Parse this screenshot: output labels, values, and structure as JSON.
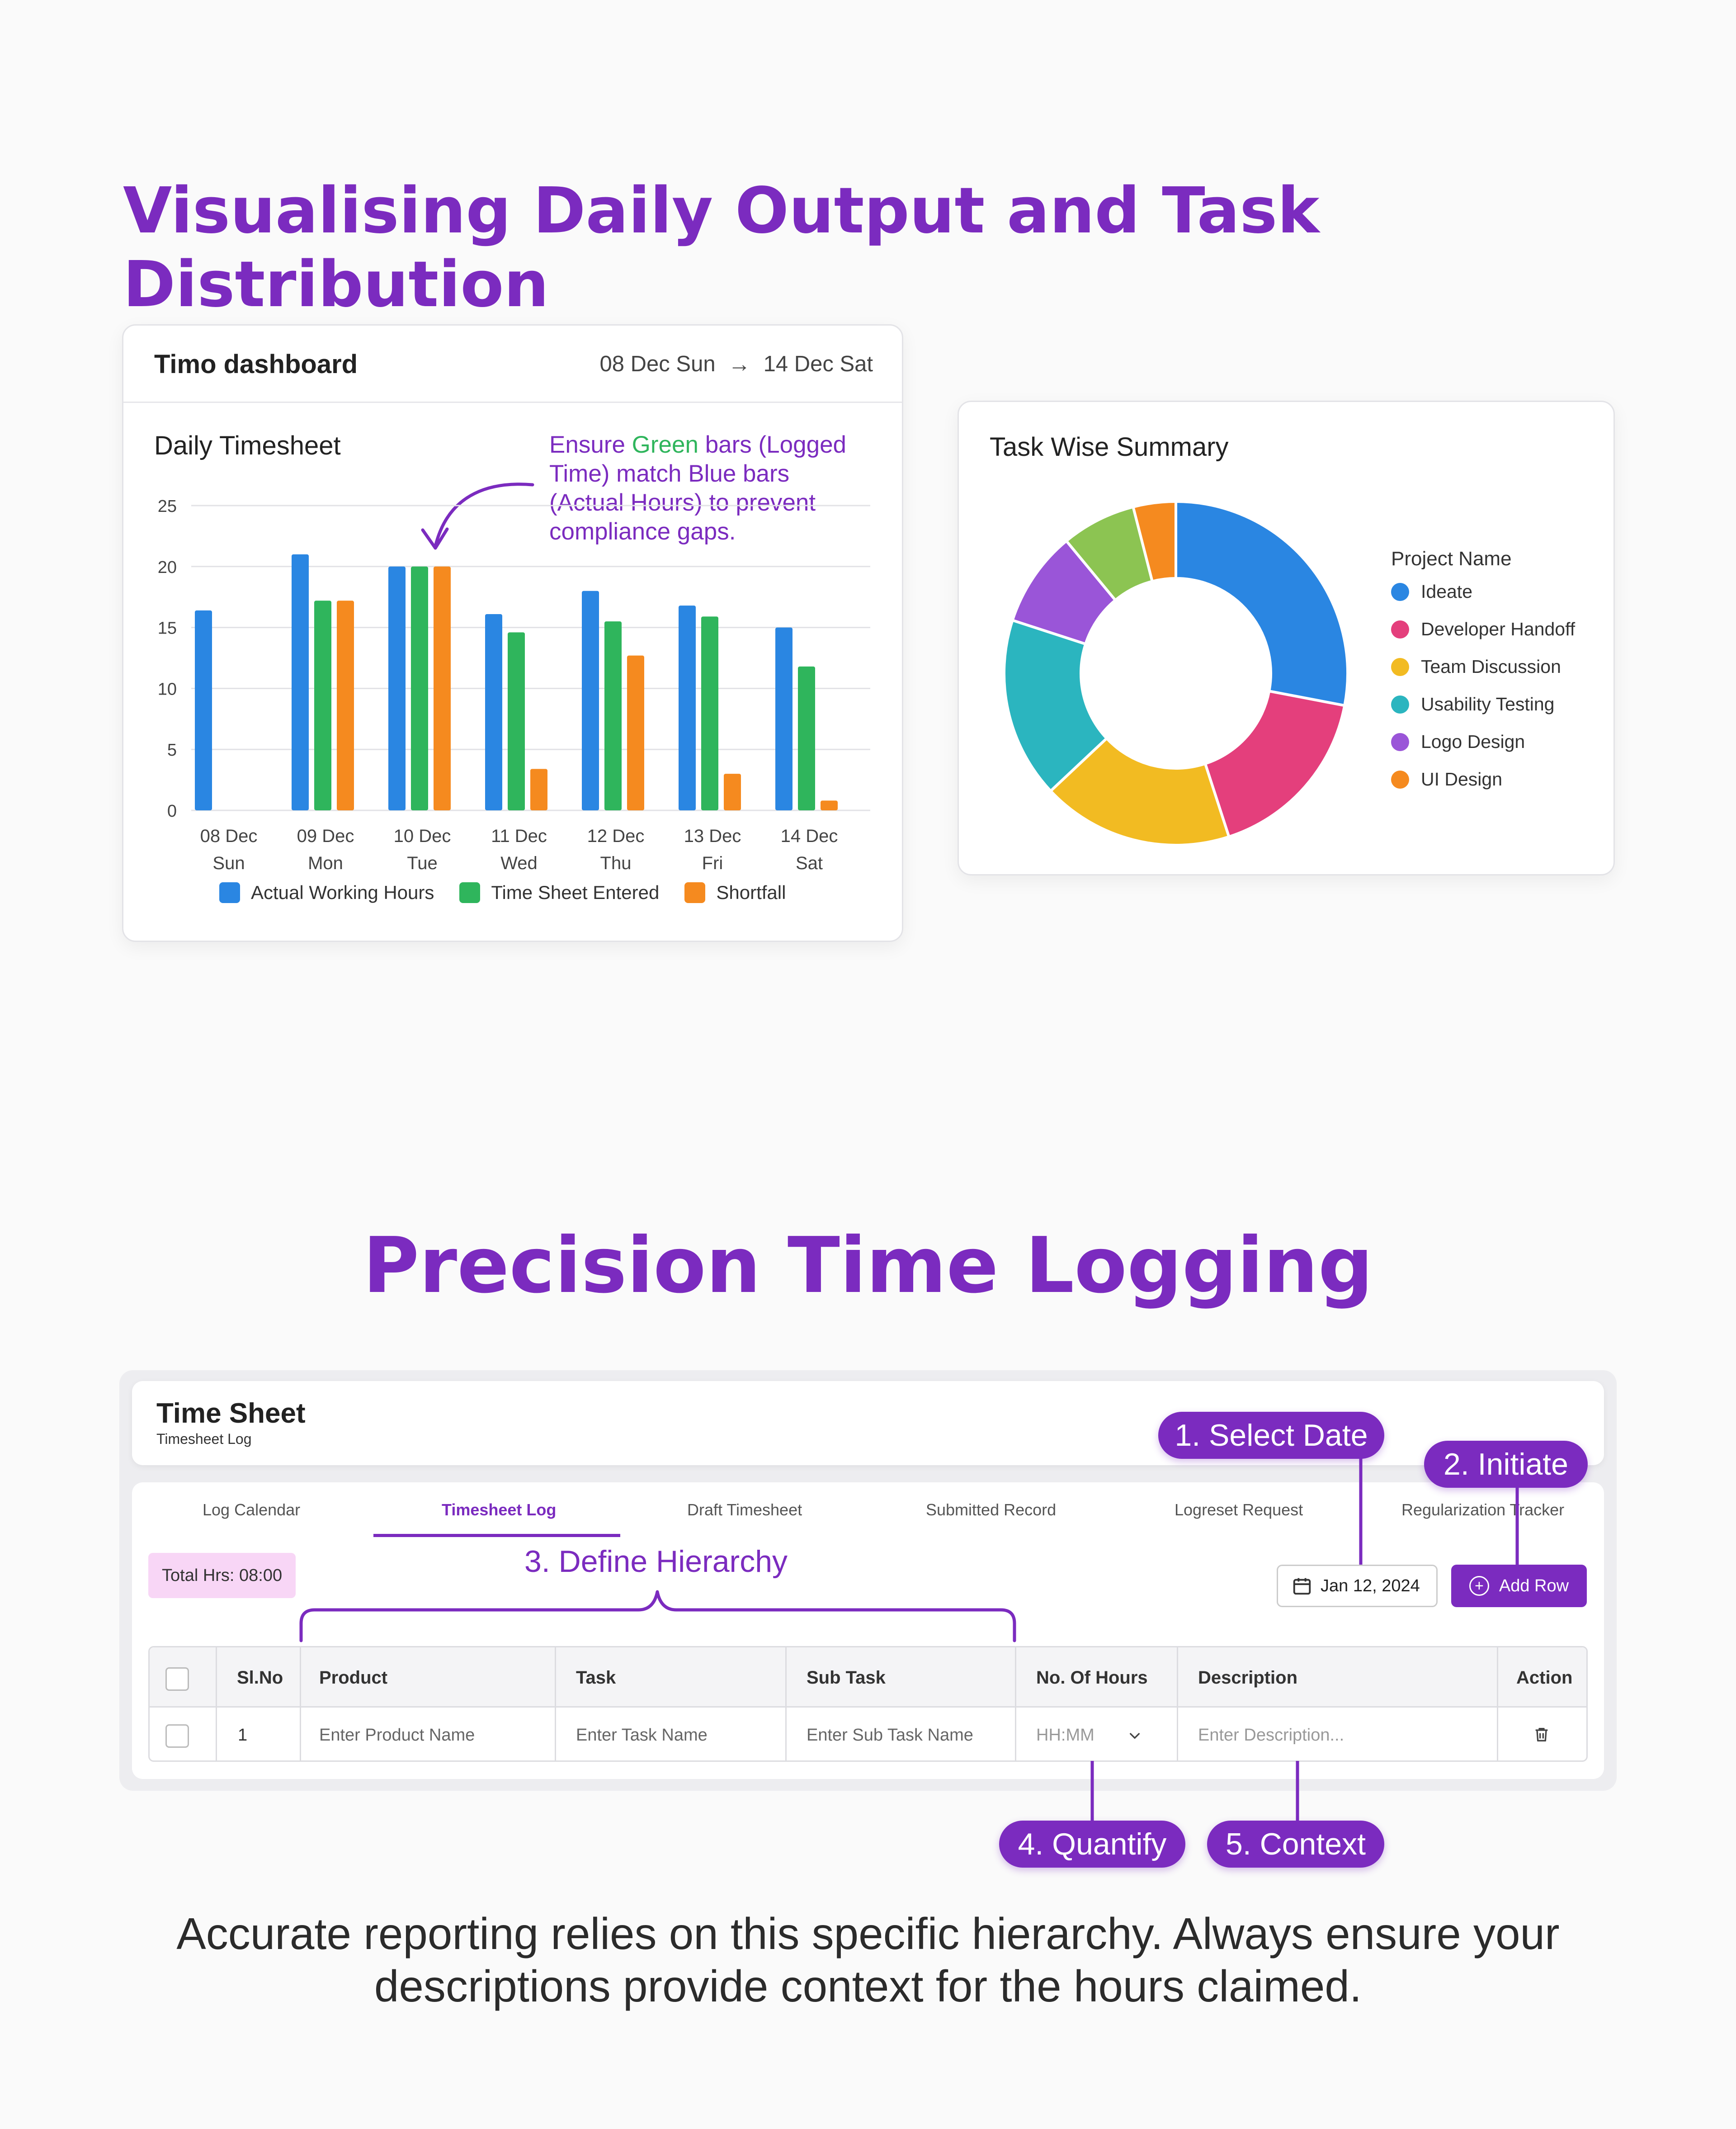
{
  "section1": {
    "title": "Visualising Daily Output and Task Distribution"
  },
  "dashboard": {
    "title": "Timo dashboard",
    "date_start": "08 Dec Sun",
    "date_end": "14 Dec Sat",
    "chart_title": "Daily Timesheet",
    "annotation": {
      "part1": "Ensure ",
      "green_word": "Green",
      "part2": " bars (Logged",
      "line2": "Time) match Blue bars",
      "line3": "(Actual Hours) to prevent",
      "line4": "compliance gaps."
    },
    "legend": {
      "actual": "Actual Working Hours",
      "entered": "Time Sheet Entered",
      "shortfall": "Shortfall"
    }
  },
  "chart_data": [
    {
      "type": "bar",
      "title": "Daily Timesheet",
      "categories": [
        "08 Dec Sun",
        "09 Dec Mon",
        "10 Dec Tue",
        "11 Dec Wed",
        "12 Dec Thu",
        "13 Dec Fri",
        "14 Dec Sat"
      ],
      "category_lines": [
        [
          "08 Dec",
          "Sun"
        ],
        [
          "09 Dec",
          "Mon"
        ],
        [
          "10 Dec",
          "Tue"
        ],
        [
          "11 Dec",
          "Wed"
        ],
        [
          "12 Dec",
          "Thu"
        ],
        [
          "13 Dec",
          "Fri"
        ],
        [
          "14 Dec",
          "Sat"
        ]
      ],
      "series": [
        {
          "name": "Actual Working Hours",
          "color": "#2a86e2",
          "values": [
            16.4,
            21,
            20,
            16.1,
            18,
            16.8,
            15
          ]
        },
        {
          "name": "Time Sheet Entered",
          "color": "#2fb55c",
          "values": [
            0,
            17.2,
            20,
            14.6,
            15.5,
            15.9,
            11.8
          ]
        },
        {
          "name": "Shortfall",
          "color": "#f58a1f",
          "values": [
            0,
            17.2,
            20,
            3.4,
            12.7,
            3,
            0.8
          ]
        }
      ],
      "yticks": [
        0,
        5,
        10,
        15,
        20,
        25
      ],
      "ylim": [
        0,
        25
      ],
      "grid": true,
      "legend": "bottom"
    },
    {
      "type": "pie",
      "title": "Task Wise Summary",
      "legend_title": "Project Name",
      "legend": "right",
      "slices": [
        {
          "name": "Ideate",
          "value": 28,
          "color": "#2a86e2"
        },
        {
          "name": "Developer Handoff",
          "value": 17,
          "color": "#e43f7c"
        },
        {
          "name": "Team Discussion",
          "value": 18,
          "color": "#f2bb22"
        },
        {
          "name": "Usability Testing",
          "value": 17,
          "color": "#2bb5bf"
        },
        {
          "name": "Logo Design",
          "value": 9,
          "color": "#9a55d8"
        },
        {
          "name": "",
          "value": 7,
          "color": "#8cc452"
        },
        {
          "name": "UI Design",
          "value": 4,
          "color": "#f58a1f"
        }
      ]
    }
  ],
  "section2": {
    "title": "Precision Time Logging"
  },
  "timesheet": {
    "title": "Time Sheet",
    "subtitle": "Timesheet Log",
    "tabs": [
      "Log Calendar",
      "Timesheet Log",
      "Draft Timesheet",
      "Submitted Record",
      "Logreset Request",
      "Regularization Tracker"
    ],
    "active_tab": 1,
    "total_hrs": "Total Hrs: 08:00",
    "date": "Jan 12, 2024",
    "add_row": "Add Row",
    "columns": [
      "Sl.No",
      "Product",
      "Task",
      "Sub Task",
      "No. Of Hours",
      "Description",
      "Action"
    ],
    "row": {
      "sl": "1",
      "product_placeholder": "Enter Product Name",
      "task_placeholder": "Enter Task Name",
      "subtask_placeholder": "Enter Sub Task Name",
      "hours_placeholder": "HH:MM",
      "description_placeholder": "Enter Description..."
    }
  },
  "callouts": {
    "select_date": "1. Select Date",
    "initiate": "2. Initiate",
    "define": "3. Define Hierarchy",
    "quantify": "4. Quantify",
    "context": "5. Context"
  },
  "footer": {
    "line1": "Accurate reporting relies on this specific hierarchy. Always ensure your",
    "line2": "descriptions provide context for the hours claimed."
  },
  "colors": {
    "accent": "#7b2bbf"
  }
}
